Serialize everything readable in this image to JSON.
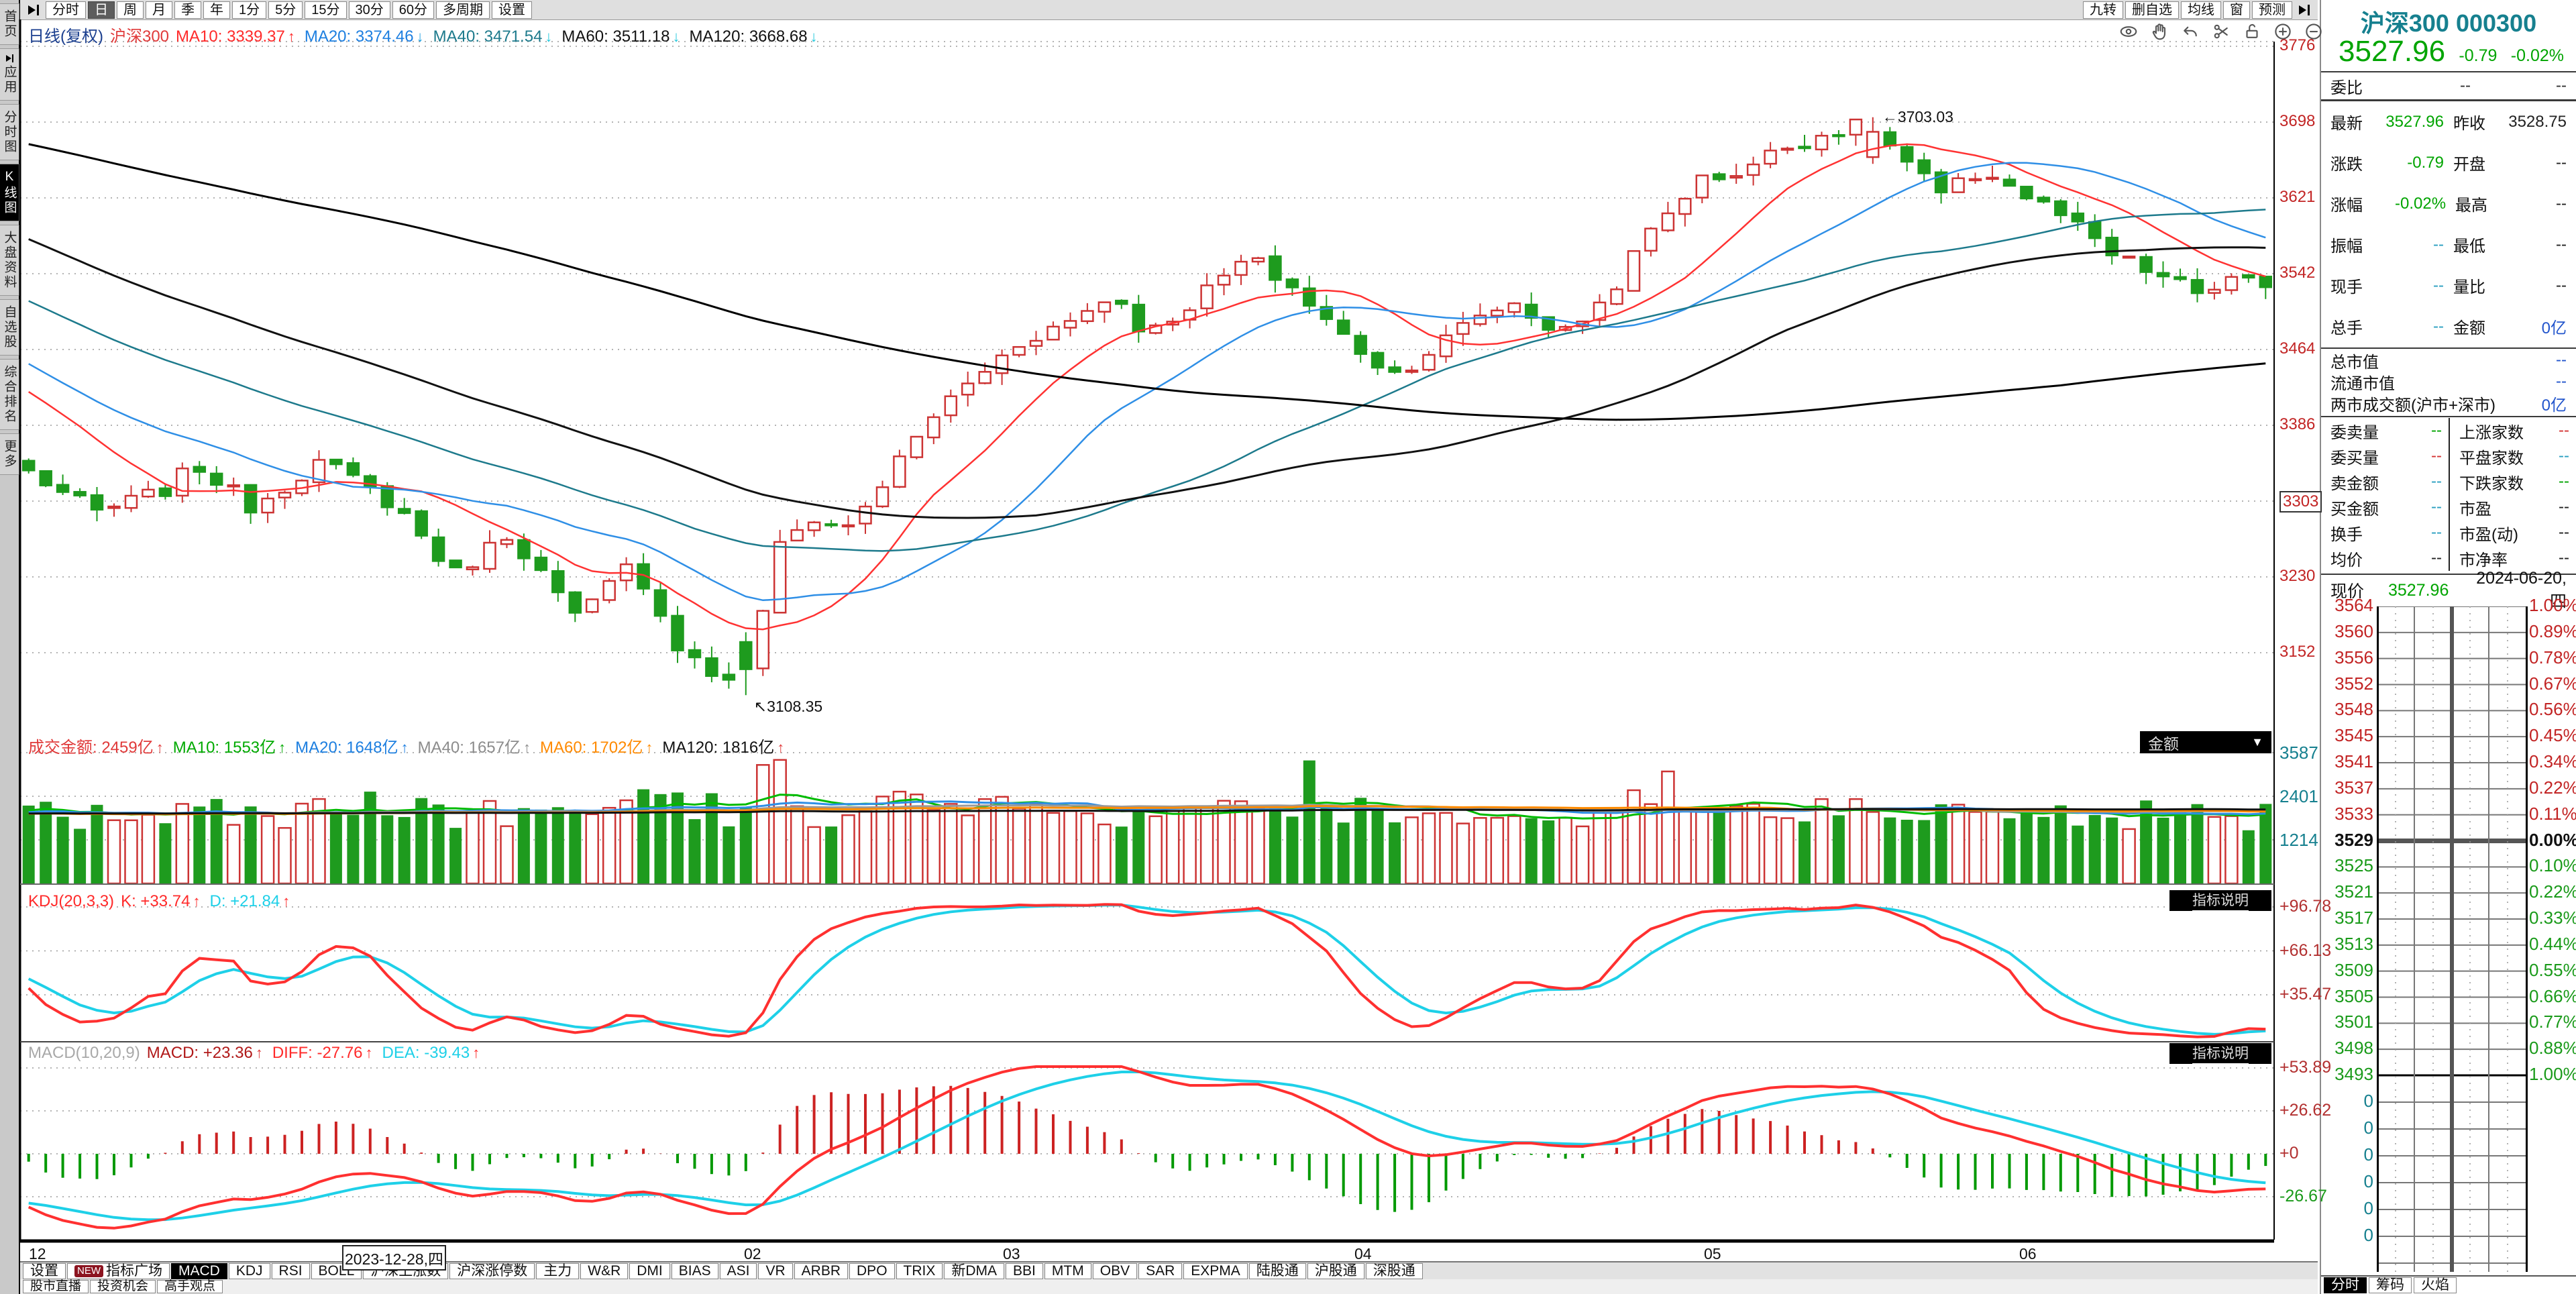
{
  "toolbar": {
    "periods": [
      "分时",
      "日",
      "周",
      "月",
      "季",
      "年",
      "1分",
      "5分",
      "15分",
      "30分",
      "60分",
      "多周期",
      "设置"
    ],
    "active": "日",
    "right": [
      "九转",
      "删自选",
      "均线",
      "窗",
      "预测"
    ]
  },
  "sidebar": {
    "items": [
      {
        "label": "首页"
      },
      {
        "label": "应用",
        "icon": "play-bar-icon"
      },
      {
        "label": "分时图"
      },
      {
        "label": "K线图",
        "active": true
      },
      {
        "label": "大盘资料"
      },
      {
        "label": "自选股"
      },
      {
        "label": "综合排名"
      },
      {
        "label": "更多"
      }
    ]
  },
  "chart_icons": [
    "eye",
    "hand",
    "undo",
    "scissors",
    "unlock",
    "zoom-in",
    "zoom-out"
  ],
  "explain_badge": "指标说明",
  "volume_dropdown": {
    "label": "金额",
    "arrow": "▼"
  },
  "chart_data": {
    "type": "candlestick",
    "title": "沪深300 日线(复权)",
    "kline_header": {
      "segments": [
        {
          "t": "日线(复权)",
          "c": "#1b3f8f"
        },
        {
          "t": "沪深300",
          "c": "#e03a3a"
        },
        {
          "t": "MA10: 3339.37",
          "c": "#ff2a2a",
          "a": "↑",
          "ac": "#ff2a2a"
        },
        {
          "t": "MA20: 3374.46",
          "c": "#1d7fe0",
          "a": "↓",
          "ac": "#1d9fe0"
        },
        {
          "t": "MA40: 3471.54",
          "c": "#1d7a8c",
          "a": "↓",
          "ac": "#1ec8dc"
        },
        {
          "t": "MA60: 3511.18",
          "c": "#111111",
          "a": "↓",
          "ac": "#1ec8dc"
        },
        {
          "t": "MA120: 3668.68",
          "c": "#111111",
          "a": "↓",
          "ac": "#1ec8dc"
        }
      ]
    },
    "price_axis": {
      "labels": [
        "3776",
        "3698",
        "3621",
        "3542",
        "3464",
        "3386",
        "3303",
        "3230",
        "3152"
      ],
      "boxed": "3303"
    },
    "annotations": [
      {
        "text": "3703.03",
        "arrow": "←",
        "price": 3703.03,
        "at": "high"
      },
      {
        "text": "3108.35",
        "arrow": "↖",
        "price": 3108.35,
        "at": "low"
      }
    ],
    "n_candles": 132,
    "price_anchors": [
      [
        0,
        3338
      ],
      [
        0.03,
        3296
      ],
      [
        0.06,
        3318
      ],
      [
        0.075,
        3345
      ],
      [
        0.1,
        3302
      ],
      [
        0.13,
        3348
      ],
      [
        0.145,
        3330
      ],
      [
        0.165,
        3302
      ],
      [
        0.19,
        3232
      ],
      [
        0.215,
        3276
      ],
      [
        0.245,
        3185
      ],
      [
        0.27,
        3246
      ],
      [
        0.29,
        3160
      ],
      [
        0.305,
        3130
      ],
      [
        0.32,
        3125
      ],
      [
        0.335,
        3258
      ],
      [
        0.35,
        3292
      ],
      [
        0.365,
        3278
      ],
      [
        0.385,
        3335
      ],
      [
        0.405,
        3398
      ],
      [
        0.425,
        3438
      ],
      [
        0.445,
        3475
      ],
      [
        0.465,
        3492
      ],
      [
        0.485,
        3522
      ],
      [
        0.5,
        3478
      ],
      [
        0.52,
        3512
      ],
      [
        0.545,
        3558
      ],
      [
        0.565,
        3528
      ],
      [
        0.585,
        3482
      ],
      [
        0.61,
        3438
      ],
      [
        0.63,
        3468
      ],
      [
        0.65,
        3502
      ],
      [
        0.665,
        3512
      ],
      [
        0.685,
        3478
      ],
      [
        0.705,
        3516
      ],
      [
        0.725,
        3585
      ],
      [
        0.745,
        3636
      ],
      [
        0.765,
        3648
      ],
      [
        0.785,
        3672
      ],
      [
        0.805,
        3688
      ],
      [
        0.822,
        3695
      ],
      [
        0.84,
        3655
      ],
      [
        0.855,
        3622
      ],
      [
        0.875,
        3650
      ],
      [
        0.89,
        3625
      ],
      [
        0.91,
        3600
      ],
      [
        0.93,
        3562
      ],
      [
        0.95,
        3542
      ],
      [
        0.97,
        3522
      ],
      [
        0.985,
        3535
      ],
      [
        1,
        3528
      ]
    ],
    "low_point": {
      "index": 42,
      "price": 3108.35
    },
    "high_point": {
      "index": 108,
      "price": 3703.03
    },
    "ma_windows": {
      "price": [
        10,
        20,
        40,
        60,
        120
      ],
      "colors": [
        "#ff3232",
        "#2f8fe6",
        "#1d7a8c",
        "#111111",
        "#000000"
      ]
    },
    "volume_header": {
      "segments": [
        {
          "t": "成交金额: 2459亿",
          "c": "#e03a3a",
          "a": "↑",
          "ac": "#e03a3a"
        },
        {
          "t": "MA10: 1553亿",
          "c": "#00aa00",
          "a": "↑",
          "ac": "#00aa00"
        },
        {
          "t": "MA20: 1648亿",
          "c": "#1d7fe0",
          "a": "↑",
          "ac": "#1d7fe0"
        },
        {
          "t": "MA40: 1657亿",
          "c": "#8c8c8c",
          "a": "↑",
          "ac": "#8c8c8c"
        },
        {
          "t": "MA60: 1702亿",
          "c": "#ff8a00",
          "a": "↑",
          "ac": "#ff8a00"
        },
        {
          "t": "MA120: 1816亿",
          "c": "#111111",
          "a": "↑",
          "ac": "#e03a3a"
        }
      ]
    },
    "volume_axis": [
      "3587",
      "2401",
      "1214"
    ],
    "volume_ma_colors": [
      "#00bb00",
      "#2f8fe6",
      "#999999",
      "#ff8a00",
      "#111111"
    ],
    "kdj_header": {
      "segments": [
        {
          "t": "KDJ(20,3,3)",
          "c": "#ff2a2a"
        },
        {
          "t": "K: +33.74",
          "c": "#ff2a2a",
          "a": "↑",
          "ac": "#ff2a2a"
        },
        {
          "t": "D: +21.84",
          "c": "#1ed0e8",
          "a": "↑",
          "ac": "#ff2a2a"
        }
      ]
    },
    "kdj_axis": [
      "+96.78",
      "+66.13",
      "+35.47"
    ],
    "macd_header": {
      "segments": [
        {
          "t": "MACD(10,20,9)",
          "c": "#a8a8a8"
        },
        {
          "t": "MACD: +23.36",
          "c": "#b01818",
          "a": "↑",
          "ac": "#e03a3a"
        },
        {
          "t": "DIFF: -27.76",
          "c": "#ff2a2a",
          "a": "↑",
          "ac": "#ff2a2a"
        },
        {
          "t": "DEA: -39.43",
          "c": "#1ed0e8",
          "a": "↑",
          "ac": "#ff2a2a"
        }
      ]
    },
    "macd_axis": [
      "+53.89",
      "+26.62",
      "+0",
      "-26.67"
    ],
    "x_axis": [
      {
        "t": "12",
        "f": 0.004
      },
      {
        "t": "2023-12-28,四",
        "f": 0.143,
        "boxed": true
      },
      {
        "t": "02",
        "f": 0.321
      },
      {
        "t": "03",
        "f": 0.436
      },
      {
        "t": "04",
        "f": 0.592
      },
      {
        "t": "05",
        "f": 0.747
      },
      {
        "t": "06",
        "f": 0.887
      }
    ]
  },
  "bottom_tabs": {
    "items": [
      {
        "label": "设置"
      },
      {
        "label": "指标广场",
        "badge": "NEW"
      },
      {
        "label": "MACD",
        "active": true
      },
      {
        "label": "KDJ"
      },
      {
        "label": "RSI"
      },
      {
        "label": "BOLL"
      },
      {
        "label": "沪深上涨数"
      },
      {
        "label": "沪深涨停数"
      },
      {
        "label": "主力"
      },
      {
        "label": "W&R"
      },
      {
        "label": "DMI"
      },
      {
        "label": "BIAS"
      },
      {
        "label": "ASI"
      },
      {
        "label": "VR"
      },
      {
        "label": "ARBR"
      },
      {
        "label": "DPO"
      },
      {
        "label": "TRIX"
      },
      {
        "label": "新DMA"
      },
      {
        "label": "BBI"
      },
      {
        "label": "MTM"
      },
      {
        "label": "OBV"
      },
      {
        "label": "SAR"
      },
      {
        "label": "EXPMA"
      },
      {
        "label": "陆股通"
      },
      {
        "label": "沪股通"
      },
      {
        "label": "深股通"
      }
    ],
    "row2": [
      "股市直播",
      "投资机会",
      "高手观点"
    ]
  },
  "quote": {
    "name": "沪深300",
    "code": "000300",
    "price": "3527.96",
    "change": "-0.79",
    "pct": "-0.02%",
    "weibi": {
      "label": "委比",
      "v1": "--",
      "v2": "--"
    },
    "rows": [
      {
        "ll": "最新",
        "lv": "3527.96",
        "lc": "cg",
        "rl": "昨收",
        "rv": "3528.75",
        "rc": "ck"
      },
      {
        "ll": "涨跌",
        "lv": "-0.79",
        "lc": "cg",
        "rl": "开盘",
        "rv": "--",
        "rc": "ck"
      },
      {
        "ll": "涨幅",
        "lv": "-0.02%",
        "lc": "cg",
        "rl": "最高",
        "rv": "--",
        "rc": "ck"
      },
      {
        "ll": "振幅",
        "lv": "--",
        "lc": "cc",
        "rl": "最低",
        "rv": "--",
        "rc": "ck"
      },
      {
        "ll": "现手",
        "lv": "--",
        "lc": "cc",
        "rl": "量比",
        "rv": "--",
        "rc": "ck"
      },
      {
        "ll": "总手",
        "lv": "--",
        "lc": "cc",
        "rl": "金额",
        "rv": "0亿",
        "rc": "cb"
      }
    ],
    "wide": [
      {
        "l": "总市值",
        "v": "--",
        "vc": "cb"
      },
      {
        "l": "流通市值",
        "v": "--",
        "vc": "cb"
      },
      {
        "l": "两市成交额(沪市+深市)",
        "v": "0亿",
        "vc": "cb"
      }
    ],
    "grid2": [
      {
        "ll": "委卖量",
        "lv": "--",
        "lc": "cg",
        "rl": "上涨家数",
        "rv": "--",
        "rc": "cr"
      },
      {
        "ll": "委买量",
        "lv": "--",
        "lc": "cr",
        "rl": "平盘家数",
        "rv": "--",
        "rc": "cc"
      },
      {
        "ll": "卖金额",
        "lv": "--",
        "lc": "cc",
        "rl": "下跌家数",
        "rv": "--",
        "rc": "cg"
      },
      {
        "ll": "买金额",
        "lv": "--",
        "lc": "cc",
        "rl": "市盈",
        "rv": "--",
        "rc": "ck"
      },
      {
        "ll": "换手",
        "lv": "--",
        "lc": "cc",
        "rl": "市盈(动)",
        "rv": "--",
        "rc": "ck"
      },
      {
        "ll": "均价",
        "lv": "--",
        "lc": "ck",
        "rl": "市净率",
        "rv": "--",
        "rc": "ck"
      }
    ],
    "now": {
      "label": "现价",
      "value": "3527.96",
      "date": "2024-06-20,四"
    }
  },
  "ladder": {
    "rows": [
      {
        "price": "3564",
        "pct": "1.00%",
        "side": "up"
      },
      {
        "price": "3560",
        "pct": "0.89%",
        "side": "up"
      },
      {
        "price": "3556",
        "pct": "0.78%",
        "side": "up"
      },
      {
        "price": "3552",
        "pct": "0.67%",
        "side": "up"
      },
      {
        "price": "3548",
        "pct": "0.56%",
        "side": "up"
      },
      {
        "price": "3545",
        "pct": "0.45%",
        "side": "up"
      },
      {
        "price": "3541",
        "pct": "0.34%",
        "side": "up"
      },
      {
        "price": "3537",
        "pct": "0.22%",
        "side": "up"
      },
      {
        "price": "3533",
        "pct": "0.11%",
        "side": "up"
      },
      {
        "price": "3529",
        "pct": "0.00%",
        "side": "flat"
      },
      {
        "price": "3525",
        "pct": "0.10%",
        "side": "down"
      },
      {
        "price": "3521",
        "pct": "0.22%",
        "side": "down"
      },
      {
        "price": "3517",
        "pct": "0.33%",
        "side": "down"
      },
      {
        "price": "3513",
        "pct": "0.44%",
        "side": "down"
      },
      {
        "price": "3509",
        "pct": "0.55%",
        "side": "down"
      },
      {
        "price": "3505",
        "pct": "0.66%",
        "side": "down"
      },
      {
        "price": "3501",
        "pct": "0.77%",
        "side": "down"
      },
      {
        "price": "3498",
        "pct": "0.88%",
        "side": "down"
      },
      {
        "price": "3493",
        "pct": "1.00%",
        "side": "down"
      }
    ],
    "zeros": [
      "0",
      "0",
      "0",
      "0",
      "0",
      "0"
    ]
  },
  "right_tabs": {
    "items": [
      "分时",
      "筹码",
      "火焰"
    ],
    "active": "分时"
  }
}
